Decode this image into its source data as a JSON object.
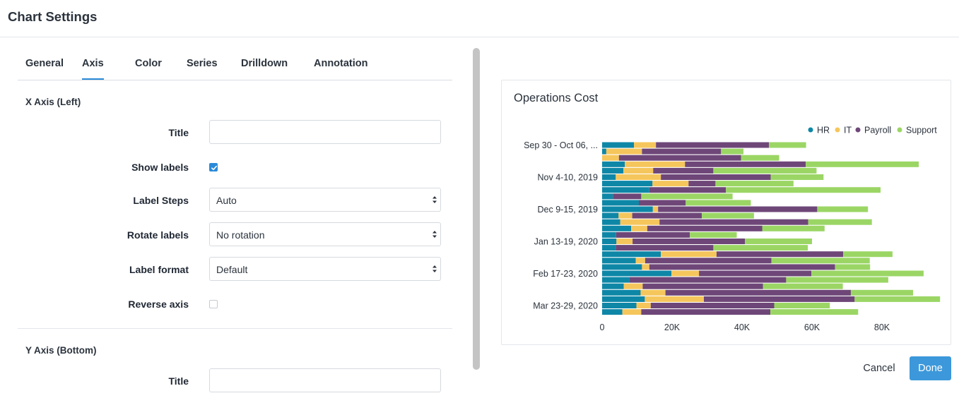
{
  "header": {
    "title": "Chart Settings"
  },
  "tabs": [
    {
      "label": "General",
      "active": false
    },
    {
      "label": "Axis",
      "active": true
    },
    {
      "label": "Color",
      "active": false
    },
    {
      "label": "Series",
      "active": false
    },
    {
      "label": "Drilldown",
      "active": false
    },
    {
      "label": "Annotation",
      "active": false
    }
  ],
  "x_axis": {
    "section_title": "X Axis (Left)",
    "title_label": "Title",
    "title_value": "",
    "show_labels_label": "Show labels",
    "show_labels_checked": true,
    "label_steps_label": "Label Steps",
    "label_steps_value": "Auto",
    "rotate_labels_label": "Rotate labels",
    "rotate_labels_value": "No rotation",
    "label_format_label": "Label format",
    "label_format_value": "Default",
    "reverse_axis_label": "Reverse axis",
    "reverse_axis_checked": false
  },
  "y_axis": {
    "section_title": "Y Axis (Bottom)",
    "title_label": "Title",
    "title_value": ""
  },
  "footer": {
    "cancel_label": "Cancel",
    "done_label": "Done"
  },
  "chart_data": {
    "type": "bar",
    "orientation": "horizontal",
    "stacked": true,
    "title": "Operations Cost",
    "legend_position": "top-right",
    "colors": {
      "HR": "#0e87a7",
      "IT": "#f5c65c",
      "Payroll": "#6e4778",
      "Support": "#9bd665"
    },
    "y_tick_labels": [
      "Sep 30 - Oct 06, ...",
      "Nov 4-10, 2019",
      "Dec 9-15, 2019",
      "Jan 13-19, 2020",
      "Feb 17-23, 2020",
      "Mar 23-29, 2020"
    ],
    "x_ticks": [
      "0",
      "20K",
      "40K",
      "60K",
      "80K"
    ],
    "xlim": [
      0,
      97000
    ],
    "bar_count": 27,
    "series": [
      {
        "name": "HR",
        "values": [
          9100,
          1200,
          0,
          6500,
          6100,
          3900,
          14400,
          13500,
          3100,
          10500,
          14500,
          4700,
          5200,
          8300,
          4000,
          4100,
          3900,
          16800,
          9600,
          11400,
          19800,
          7800,
          6200,
          11000,
          12200,
          9800,
          5800
        ]
      },
      {
        "name": "IT",
        "values": [
          6300,
          10200,
          4800,
          17200,
          8500,
          12900,
          10300,
          0,
          0,
          0,
          1500,
          3900,
          11200,
          4600,
          0,
          4600,
          0,
          15900,
          2700,
          2100,
          7900,
          0,
          5400,
          7100,
          16900,
          4100,
          5400
        ]
      },
      {
        "name": "Payroll",
        "values": [
          32300,
          22600,
          34900,
          34500,
          17200,
          31400,
          7700,
          21900,
          8100,
          13400,
          45500,
          19900,
          42500,
          32900,
          21100,
          32100,
          27900,
          36200,
          36100,
          53100,
          32100,
          44800,
          34400,
          53000,
          43100,
          35300,
          36900
        ]
      },
      {
        "name": "Support",
        "values": [
          10600,
          6400,
          10900,
          32300,
          29500,
          15100,
          22300,
          44200,
          26100,
          18600,
          14500,
          14900,
          18200,
          17800,
          13400,
          19200,
          27000,
          14100,
          28100,
          10000,
          32100,
          29200,
          22800,
          17800,
          24400,
          15900,
          25100
        ]
      }
    ]
  }
}
